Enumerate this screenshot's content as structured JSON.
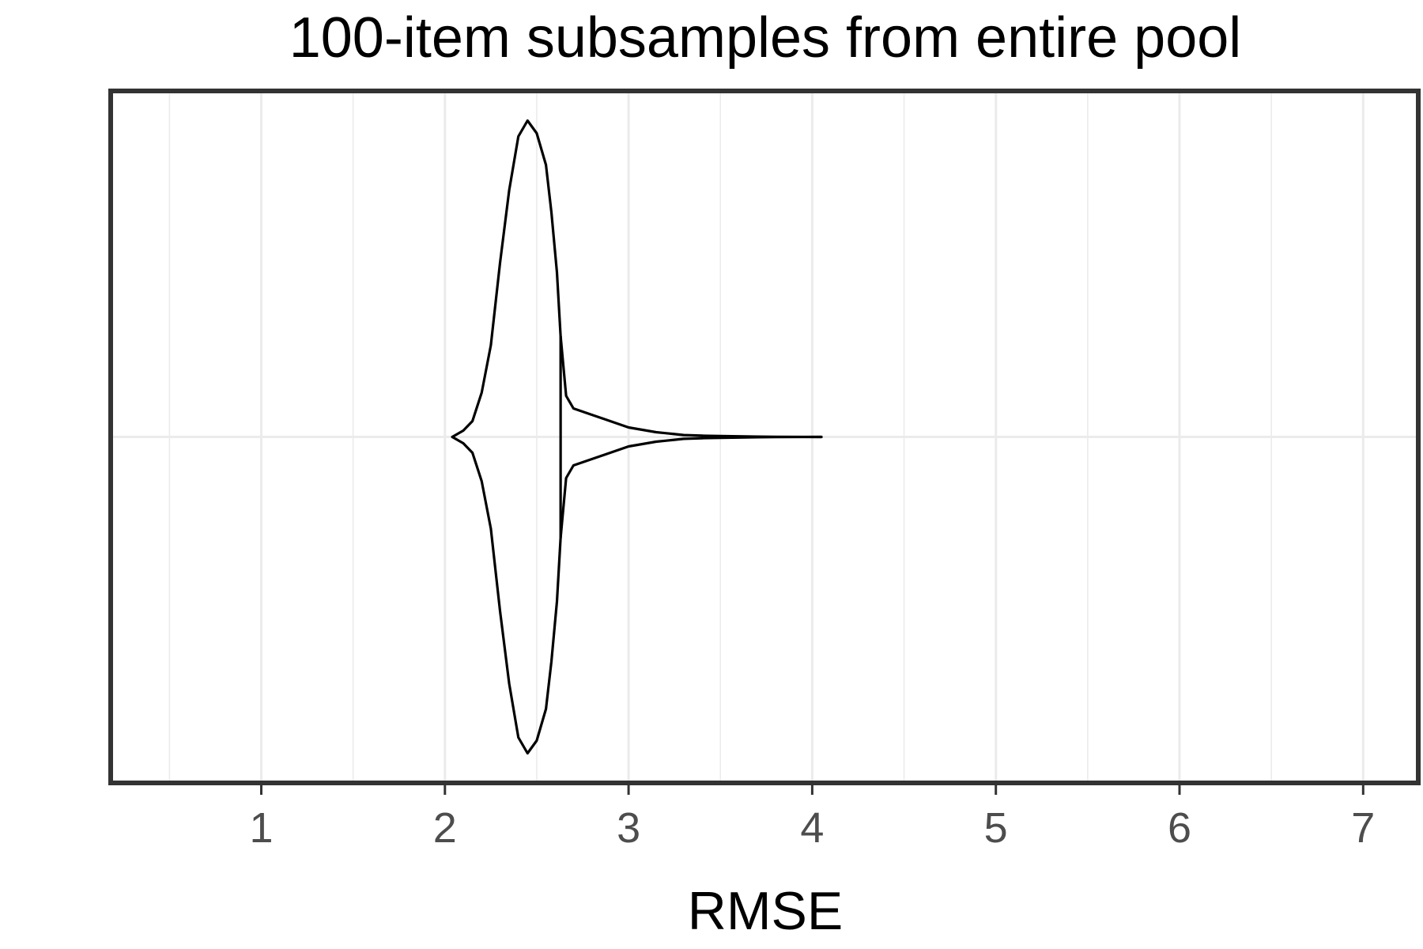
{
  "chart_data": {
    "type": "violin",
    "title": "100-item subsamples from entire pool",
    "xlabel": "RMSE",
    "ylabel": "",
    "xlim": [
      0.18,
      7.3
    ],
    "x_ticks": [
      1,
      2,
      3,
      4,
      5,
      6,
      7
    ],
    "x_tick_labels": [
      "1",
      "2",
      "3",
      "4",
      "5",
      "6",
      "7"
    ],
    "grid": true,
    "orientation": "horizontal",
    "median_line": 2.63,
    "density": {
      "x": [
        2.04,
        2.1,
        2.15,
        2.2,
        2.25,
        2.3,
        2.35,
        2.4,
        2.45,
        2.5,
        2.55,
        2.58,
        2.61,
        2.63,
        2.66,
        2.7,
        2.75,
        2.8,
        2.85,
        2.9,
        2.95,
        3.0,
        3.05,
        3.1,
        3.15,
        3.2,
        3.25,
        3.3,
        3.4,
        3.5,
        3.6,
        3.7,
        3.8,
        4.05
      ],
      "width": [
        0.0,
        0.02,
        0.05,
        0.14,
        0.29,
        0.55,
        0.78,
        0.95,
        1.0,
        0.96,
        0.86,
        0.71,
        0.52,
        0.32,
        0.13,
        0.09,
        0.08,
        0.07,
        0.06,
        0.05,
        0.04,
        0.03,
        0.025,
        0.02,
        0.015,
        0.012,
        0.009,
        0.006,
        0.004,
        0.003,
        0.002,
        0.001,
        0.0005,
        0.0
      ]
    }
  }
}
